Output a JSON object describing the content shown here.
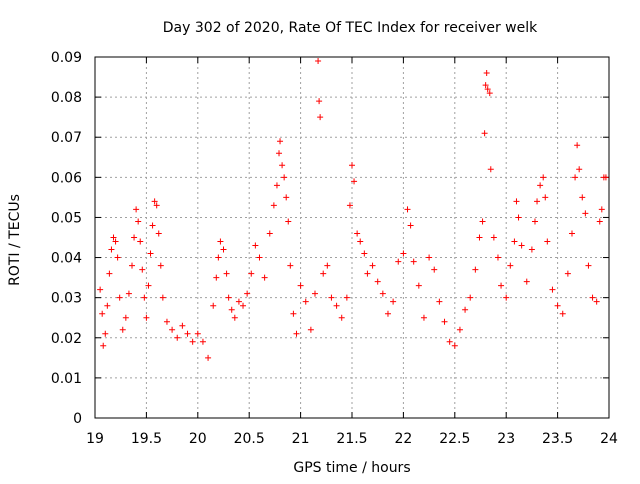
{
  "chart_data": {
    "type": "scatter",
    "title": "Day 302 of 2020, Rate Of TEC Index for receiver welk",
    "xlabel": "GPS time / hours",
    "ylabel": "ROTI / TECUs",
    "xlim": [
      19,
      24
    ],
    "ylim": [
      0,
      0.09
    ],
    "xticks": [
      "19",
      "19.5",
      "20",
      "20.5",
      "21",
      "21.5",
      "22",
      "22.5",
      "23",
      "23.5",
      "24"
    ],
    "yticks": [
      "0",
      "0.01",
      "0.02",
      "0.03",
      "0.04",
      "0.05",
      "0.06",
      "0.07",
      "0.08",
      "0.09"
    ],
    "grid": true,
    "marker": "+",
    "color": "#ff0000",
    "series": [
      {
        "points": [
          [
            19.05,
            0.032
          ],
          [
            19.07,
            0.026
          ],
          [
            19.08,
            0.018
          ],
          [
            19.1,
            0.021
          ],
          [
            19.12,
            0.028
          ],
          [
            19.14,
            0.036
          ],
          [
            19.16,
            0.042
          ],
          [
            19.18,
            0.045
          ],
          [
            19.2,
            0.044
          ],
          [
            19.22,
            0.04
          ],
          [
            19.24,
            0.03
          ],
          [
            19.27,
            0.022
          ],
          [
            19.3,
            0.025
          ],
          [
            19.33,
            0.031
          ],
          [
            19.36,
            0.038
          ],
          [
            19.38,
            0.045
          ],
          [
            19.4,
            0.052
          ],
          [
            19.42,
            0.049
          ],
          [
            19.44,
            0.044
          ],
          [
            19.46,
            0.037
          ],
          [
            19.48,
            0.03
          ],
          [
            19.5,
            0.025
          ],
          [
            19.52,
            0.033
          ],
          [
            19.54,
            0.041
          ],
          [
            19.56,
            0.048
          ],
          [
            19.58,
            0.054
          ],
          [
            19.6,
            0.053
          ],
          [
            19.62,
            0.046
          ],
          [
            19.64,
            0.038
          ],
          [
            19.66,
            0.03
          ],
          [
            19.7,
            0.024
          ],
          [
            19.75,
            0.022
          ],
          [
            19.8,
            0.02
          ],
          [
            19.85,
            0.023
          ],
          [
            19.9,
            0.021
          ],
          [
            19.95,
            0.019
          ],
          [
            20.0,
            0.021
          ],
          [
            20.05,
            0.019
          ],
          [
            20.1,
            0.015
          ],
          [
            20.15,
            0.028
          ],
          [
            20.18,
            0.035
          ],
          [
            20.2,
            0.04
          ],
          [
            20.22,
            0.044
          ],
          [
            20.25,
            0.042
          ],
          [
            20.28,
            0.036
          ],
          [
            20.3,
            0.03
          ],
          [
            20.33,
            0.027
          ],
          [
            20.36,
            0.025
          ],
          [
            20.4,
            0.029
          ],
          [
            20.44,
            0.028
          ],
          [
            20.48,
            0.031
          ],
          [
            20.52,
            0.036
          ],
          [
            20.56,
            0.043
          ],
          [
            20.6,
            0.04
          ],
          [
            20.65,
            0.035
          ],
          [
            20.7,
            0.046
          ],
          [
            20.74,
            0.053
          ],
          [
            20.77,
            0.058
          ],
          [
            20.79,
            0.066
          ],
          [
            20.8,
            0.069
          ],
          [
            20.82,
            0.063
          ],
          [
            20.84,
            0.06
          ],
          [
            20.86,
            0.055
          ],
          [
            20.88,
            0.049
          ],
          [
            20.9,
            0.038
          ],
          [
            20.93,
            0.026
          ],
          [
            20.96,
            0.021
          ],
          [
            21.0,
            0.033
          ],
          [
            21.05,
            0.029
          ],
          [
            21.1,
            0.022
          ],
          [
            21.14,
            0.031
          ],
          [
            21.17,
            0.089
          ],
          [
            21.18,
            0.079
          ],
          [
            21.19,
            0.075
          ],
          [
            21.22,
            0.036
          ],
          [
            21.26,
            0.038
          ],
          [
            21.3,
            0.03
          ],
          [
            21.35,
            0.028
          ],
          [
            21.4,
            0.025
          ],
          [
            21.45,
            0.03
          ],
          [
            21.48,
            0.053
          ],
          [
            21.5,
            0.063
          ],
          [
            21.52,
            0.059
          ],
          [
            21.55,
            0.046
          ],
          [
            21.58,
            0.044
          ],
          [
            21.62,
            0.041
          ],
          [
            21.65,
            0.036
          ],
          [
            21.7,
            0.038
          ],
          [
            21.75,
            0.034
          ],
          [
            21.8,
            0.031
          ],
          [
            21.85,
            0.026
          ],
          [
            21.9,
            0.029
          ],
          [
            21.95,
            0.039
          ],
          [
            22.0,
            0.041
          ],
          [
            22.04,
            0.052
          ],
          [
            22.07,
            0.048
          ],
          [
            22.1,
            0.039
          ],
          [
            22.15,
            0.033
          ],
          [
            22.2,
            0.025
          ],
          [
            22.25,
            0.04
          ],
          [
            22.3,
            0.037
          ],
          [
            22.35,
            0.029
          ],
          [
            22.4,
            0.024
          ],
          [
            22.45,
            0.019
          ],
          [
            22.5,
            0.018
          ],
          [
            22.55,
            0.022
          ],
          [
            22.6,
            0.027
          ],
          [
            22.65,
            0.03
          ],
          [
            22.7,
            0.037
          ],
          [
            22.74,
            0.045
          ],
          [
            22.77,
            0.049
          ],
          [
            22.79,
            0.071
          ],
          [
            22.8,
            0.083
          ],
          [
            22.81,
            0.086
          ],
          [
            22.82,
            0.082
          ],
          [
            22.84,
            0.081
          ],
          [
            22.85,
            0.062
          ],
          [
            22.88,
            0.045
          ],
          [
            22.92,
            0.04
          ],
          [
            22.95,
            0.033
          ],
          [
            23.0,
            0.03
          ],
          [
            23.04,
            0.038
          ],
          [
            23.08,
            0.044
          ],
          [
            23.1,
            0.054
          ],
          [
            23.12,
            0.05
          ],
          [
            23.15,
            0.043
          ],
          [
            23.2,
            0.034
          ],
          [
            23.25,
            0.042
          ],
          [
            23.28,
            0.049
          ],
          [
            23.3,
            0.054
          ],
          [
            23.33,
            0.058
          ],
          [
            23.36,
            0.06
          ],
          [
            23.38,
            0.055
          ],
          [
            23.4,
            0.044
          ],
          [
            23.45,
            0.032
          ],
          [
            23.5,
            0.028
          ],
          [
            23.55,
            0.026
          ],
          [
            23.6,
            0.036
          ],
          [
            23.64,
            0.046
          ],
          [
            23.67,
            0.06
          ],
          [
            23.69,
            0.068
          ],
          [
            23.71,
            0.062
          ],
          [
            23.74,
            0.055
          ],
          [
            23.77,
            0.051
          ],
          [
            23.8,
            0.038
          ],
          [
            23.84,
            0.03
          ],
          [
            23.88,
            0.029
          ],
          [
            23.91,
            0.049
          ],
          [
            23.93,
            0.052
          ],
          [
            23.95,
            0.06
          ],
          [
            23.97,
            0.06
          ]
        ]
      }
    ]
  }
}
